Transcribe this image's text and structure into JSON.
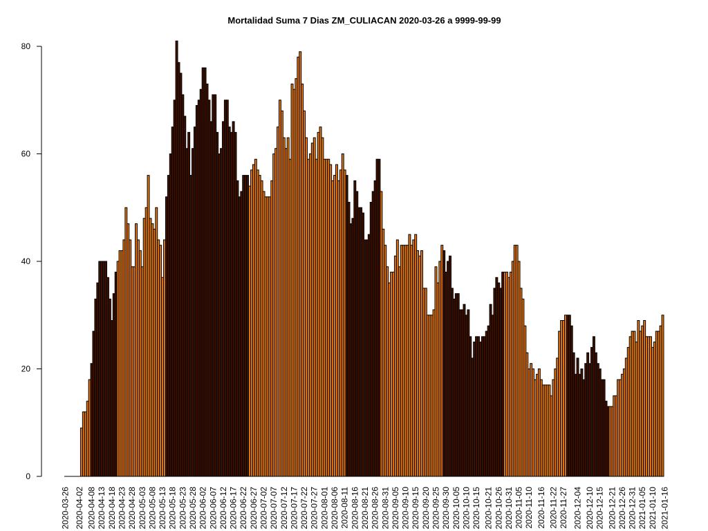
{
  "chart_data": {
    "type": "bar",
    "title": "Mortalidad Suma 7 Dias ZM_CULIACAN 2020-03-26 a 9999-99-99",
    "start_date": "2020-03-26",
    "ylim": [
      0,
      80
    ],
    "yticks": [
      0,
      20,
      40,
      60,
      80
    ],
    "xtick_labels": [
      "2020-03-26",
      "2020-04-02",
      "2020-04-08",
      "2020-04-13",
      "2020-04-18",
      "2020-04-23",
      "2020-04-28",
      "2020-05-03",
      "2020-05-08",
      "2020-05-13",
      "2020-05-18",
      "2020-05-23",
      "2020-05-28",
      "2020-06-02",
      "2020-06-07",
      "2020-06-12",
      "2020-06-17",
      "2020-06-22",
      "2020-06-27",
      "2020-07-02",
      "2020-07-07",
      "2020-07-12",
      "2020-07-17",
      "2020-07-22",
      "2020-07-27",
      "2020-08-01",
      "2020-08-06",
      "2020-08-11",
      "2020-08-16",
      "2020-08-21",
      "2020-08-26",
      "2020-08-31",
      "2020-09-05",
      "2020-09-10",
      "2020-09-15",
      "2020-09-20",
      "2020-09-25",
      "2020-09-30",
      "2020-10-05",
      "2020-10-10",
      "2020-10-15",
      "2020-10-21",
      "2020-10-26",
      "2020-10-31",
      "2020-11-05",
      "2020-11-10",
      "2020-11-16",
      "2020-11-22",
      "2020-11-27",
      "2020-12-04",
      "2020-12-10",
      "2020-12-15",
      "2020-12-21",
      "2020-12-26",
      "2020-12-31",
      "2021-01-05",
      "2021-01-10",
      "2021-01-16"
    ],
    "values": [
      0,
      0,
      0,
      0,
      0,
      0,
      0,
      0,
      9,
      12,
      12,
      14,
      18,
      21,
      27,
      33,
      36,
      40,
      40,
      40,
      40,
      37,
      33,
      29,
      34,
      38,
      40,
      42,
      42,
      44,
      50,
      47,
      44,
      39,
      39,
      47,
      44,
      42,
      39,
      48,
      50,
      56,
      48,
      47,
      46,
      50,
      44,
      43,
      37,
      44,
      52,
      56,
      60,
      65,
      70,
      81,
      77,
      75,
      71,
      67,
      61,
      64,
      56,
      61,
      65,
      69,
      70,
      72,
      76,
      76,
      73,
      70,
      66,
      71,
      71,
      64,
      60,
      61,
      66,
      70,
      70,
      65,
      64,
      66,
      64,
      55,
      52,
      53,
      56,
      56,
      56,
      54,
      57,
      58,
      59,
      57,
      56,
      55,
      53,
      52,
      52,
      52,
      55,
      60,
      61,
      65,
      70,
      68,
      63,
      61,
      63,
      59,
      73,
      72,
      74,
      78,
      79,
      73,
      68,
      63,
      59,
      60,
      62,
      63,
      59,
      64,
      65,
      63,
      59,
      59,
      59,
      58,
      55,
      56,
      58,
      55,
      57,
      60,
      57,
      56,
      51,
      47,
      48,
      55,
      53,
      50,
      50,
      49,
      44,
      44,
      45,
      51,
      53,
      55,
      59,
      59,
      53,
      46,
      43,
      39,
      36,
      38,
      38,
      41,
      44,
      39,
      43,
      43,
      43,
      43,
      45,
      43,
      44,
      45,
      42,
      41,
      42,
      35,
      35,
      30,
      30,
      30,
      31,
      39,
      36,
      40,
      43,
      42,
      38,
      40,
      41,
      35,
      33,
      34,
      34,
      31,
      31,
      32,
      30,
      31,
      26,
      22,
      25,
      26,
      26,
      25,
      26,
      26,
      27,
      28,
      32,
      30,
      35,
      37,
      36,
      35,
      38,
      38,
      38,
      37,
      38,
      40,
      43,
      43,
      40,
      35,
      33,
      28,
      23,
      20,
      21,
      20,
      18,
      19,
      20,
      18,
      17,
      17,
      17,
      17,
      15,
      18,
      20,
      22,
      27,
      29,
      29,
      30,
      30,
      30,
      28,
      23,
      19,
      22,
      19,
      20,
      18,
      21,
      23,
      21,
      24,
      26,
      23,
      21,
      20,
      18,
      18,
      14,
      13,
      13,
      13,
      15,
      15,
      18,
      18,
      19,
      20,
      22,
      24,
      26,
      27,
      27,
      25,
      29,
      27,
      28,
      29,
      26,
      26,
      26,
      24,
      25,
      27,
      27,
      28,
      30
    ],
    "group_colors": [
      "#e87a12",
      "#421200"
    ],
    "group_boundaries": [
      0,
      13,
      26,
      50,
      91,
      139,
      156,
      187,
      217,
      248,
      269,
      300
    ],
    "grid": false,
    "legend": "none"
  }
}
